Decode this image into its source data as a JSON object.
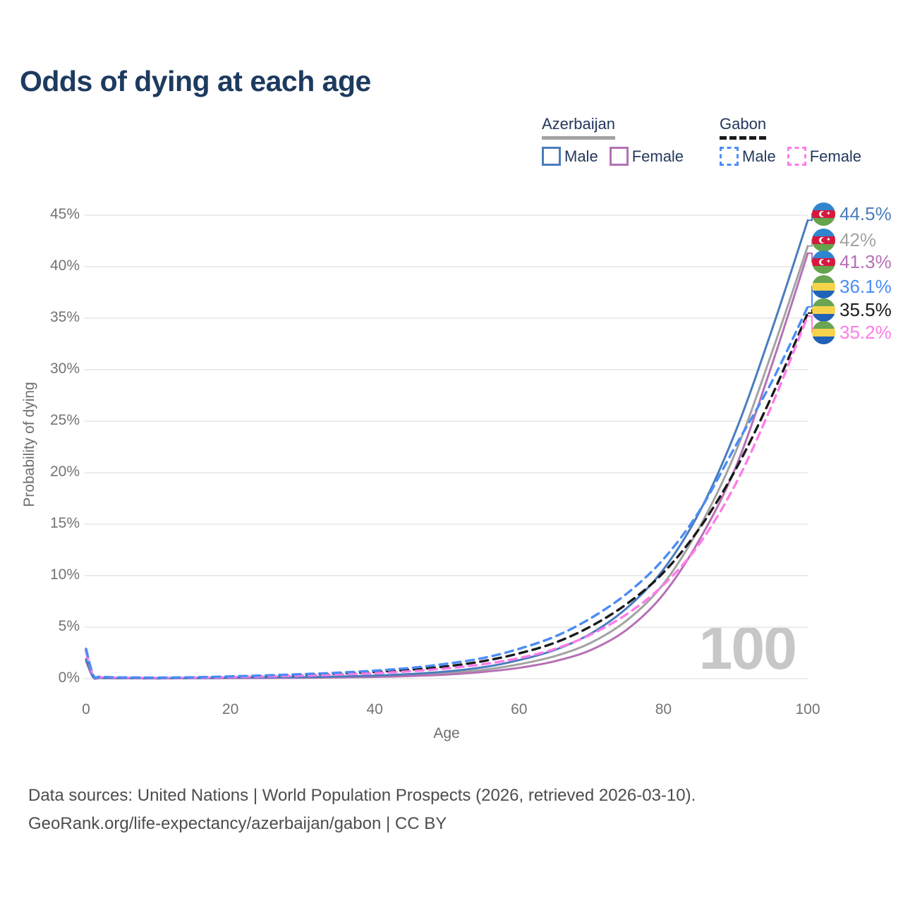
{
  "header": {
    "title": "Odds of dying at each age"
  },
  "legend": {
    "groups": [
      {
        "label": "Azerbaijan",
        "line_style": "solid",
        "underline_color": "#a3a3a3",
        "items": [
          {
            "label": "Male",
            "color": "#4a7dbd"
          },
          {
            "label": "Female",
            "color": "#b571b5"
          }
        ]
      },
      {
        "label": "Gabon",
        "line_style": "dashed",
        "underline_color": "#1a1a1a",
        "items": [
          {
            "label": "Male",
            "color": "#4b8cf5"
          },
          {
            "label": "Female",
            "color": "#ff7ce8"
          }
        ]
      }
    ]
  },
  "chart_data": {
    "type": "line",
    "title": "Odds of dying at each age",
    "xlabel": "Age",
    "ylabel": "Probability of dying",
    "xlim": [
      0,
      100
    ],
    "ylim": [
      0,
      45
    ],
    "xticks": [
      "0",
      "20",
      "40",
      "60",
      "80",
      "100"
    ],
    "yticks": [
      "0%",
      "5%",
      "10%",
      "15%",
      "20%",
      "25%",
      "30%",
      "35%",
      "40%",
      "45%"
    ],
    "grid": true,
    "legend_position": "top-right",
    "watermark": "100",
    "series": [
      {
        "name": "Azerbaijan Male",
        "country": "Azerbaijan",
        "sex": "Male",
        "color": "#4a7dbd",
        "dash": false,
        "end_label": "44.5%",
        "end_value": 44.5,
        "points": [
          [
            0,
            1.9
          ],
          [
            1,
            0.16
          ],
          [
            2,
            0.08
          ],
          [
            5,
            0.05
          ],
          [
            10,
            0.04
          ],
          [
            15,
            0.06
          ],
          [
            20,
            0.1
          ],
          [
            25,
            0.13
          ],
          [
            30,
            0.16
          ],
          [
            35,
            0.21
          ],
          [
            40,
            0.3
          ],
          [
            45,
            0.45
          ],
          [
            50,
            0.7
          ],
          [
            55,
            1.1
          ],
          [
            60,
            1.8
          ],
          [
            65,
            2.8
          ],
          [
            70,
            4.4
          ],
          [
            75,
            6.9
          ],
          [
            80,
            10.6
          ],
          [
            85,
            16.2
          ],
          [
            90,
            24.0
          ],
          [
            95,
            33.8
          ],
          [
            100,
            44.5
          ]
        ]
      },
      {
        "name": "Azerbaijan",
        "country": "Azerbaijan",
        "sex": "Both",
        "color": "#a3a3a3",
        "dash": false,
        "end_label": "42%",
        "end_value": 42,
        "points": [
          [
            0,
            1.8
          ],
          [
            1,
            0.14
          ],
          [
            2,
            0.07
          ],
          [
            5,
            0.04
          ],
          [
            10,
            0.03
          ],
          [
            15,
            0.05
          ],
          [
            20,
            0.08
          ],
          [
            25,
            0.1
          ],
          [
            30,
            0.12
          ],
          [
            35,
            0.16
          ],
          [
            40,
            0.23
          ],
          [
            45,
            0.35
          ],
          [
            50,
            0.55
          ],
          [
            55,
            0.85
          ],
          [
            60,
            1.4
          ],
          [
            65,
            2.2
          ],
          [
            70,
            3.5
          ],
          [
            75,
            5.7
          ],
          [
            80,
            9.2
          ],
          [
            85,
            14.7
          ],
          [
            90,
            22.0
          ],
          [
            95,
            31.6
          ],
          [
            100,
            42.0
          ]
        ]
      },
      {
        "name": "Azerbaijan Female",
        "country": "Azerbaijan",
        "sex": "Female",
        "color": "#b571b5",
        "dash": false,
        "end_label": "41.3%",
        "end_value": 41.3,
        "points": [
          [
            0,
            1.7
          ],
          [
            1,
            0.12
          ],
          [
            2,
            0.06
          ],
          [
            5,
            0.04
          ],
          [
            10,
            0.03
          ],
          [
            15,
            0.04
          ],
          [
            20,
            0.05
          ],
          [
            25,
            0.07
          ],
          [
            30,
            0.09
          ],
          [
            35,
            0.12
          ],
          [
            40,
            0.17
          ],
          [
            45,
            0.26
          ],
          [
            50,
            0.4
          ],
          [
            55,
            0.65
          ],
          [
            60,
            1.05
          ],
          [
            65,
            1.7
          ],
          [
            70,
            2.8
          ],
          [
            75,
            4.8
          ],
          [
            80,
            8.2
          ],
          [
            85,
            13.5
          ],
          [
            90,
            20.5
          ],
          [
            95,
            30.4
          ],
          [
            100,
            41.3
          ]
        ]
      },
      {
        "name": "Gabon Male",
        "country": "Gabon",
        "sex": "Male",
        "color": "#4b8cf5",
        "dash": true,
        "end_label": "36.1%",
        "end_value": 36.1,
        "points": [
          [
            0,
            2.9
          ],
          [
            1,
            0.35
          ],
          [
            2,
            0.18
          ],
          [
            5,
            0.12
          ],
          [
            10,
            0.1
          ],
          [
            15,
            0.14
          ],
          [
            20,
            0.22
          ],
          [
            25,
            0.32
          ],
          [
            30,
            0.44
          ],
          [
            35,
            0.58
          ],
          [
            40,
            0.78
          ],
          [
            45,
            1.05
          ],
          [
            50,
            1.45
          ],
          [
            55,
            2.0
          ],
          [
            60,
            2.9
          ],
          [
            65,
            4.1
          ],
          [
            70,
            5.9
          ],
          [
            75,
            8.3
          ],
          [
            80,
            11.6
          ],
          [
            85,
            16.3
          ],
          [
            90,
            22.6
          ],
          [
            95,
            28.8
          ],
          [
            100,
            36.1
          ]
        ]
      },
      {
        "name": "Gabon",
        "country": "Gabon",
        "sex": "Both",
        "color": "#1a1a1a",
        "dash": true,
        "end_label": "35.5%",
        "end_value": 35.5,
        "points": [
          [
            0,
            2.8
          ],
          [
            1,
            0.32
          ],
          [
            2,
            0.16
          ],
          [
            5,
            0.11
          ],
          [
            10,
            0.09
          ],
          [
            15,
            0.12
          ],
          [
            20,
            0.19
          ],
          [
            25,
            0.27
          ],
          [
            30,
            0.37
          ],
          [
            35,
            0.49
          ],
          [
            40,
            0.65
          ],
          [
            45,
            0.88
          ],
          [
            50,
            1.2
          ],
          [
            55,
            1.7
          ],
          [
            60,
            2.45
          ],
          [
            65,
            3.5
          ],
          [
            70,
            5.1
          ],
          [
            75,
            7.3
          ],
          [
            80,
            10.3
          ],
          [
            85,
            14.6
          ],
          [
            90,
            20.3
          ],
          [
            95,
            27.4
          ],
          [
            100,
            35.5
          ]
        ]
      },
      {
        "name": "Gabon Female",
        "country": "Gabon",
        "sex": "Female",
        "color": "#ff7ce8",
        "dash": true,
        "end_label": "35.2%",
        "end_value": 35.2,
        "points": [
          [
            0,
            2.6
          ],
          [
            1,
            0.3
          ],
          [
            2,
            0.15
          ],
          [
            5,
            0.1
          ],
          [
            10,
            0.08
          ],
          [
            15,
            0.1
          ],
          [
            20,
            0.15
          ],
          [
            25,
            0.22
          ],
          [
            30,
            0.3
          ],
          [
            35,
            0.4
          ],
          [
            40,
            0.53
          ],
          [
            45,
            0.72
          ],
          [
            50,
            1.0
          ],
          [
            55,
            1.4
          ],
          [
            60,
            2.0
          ],
          [
            65,
            2.9
          ],
          [
            70,
            4.3
          ],
          [
            75,
            6.3
          ],
          [
            80,
            9.1
          ],
          [
            85,
            13.1
          ],
          [
            90,
            18.9
          ],
          [
            95,
            26.5
          ],
          [
            100,
            35.2
          ]
        ]
      }
    ]
  },
  "footer": {
    "line1": "Data sources: United Nations | World Population Prospects (2026, retrieved 2026-03-10).",
    "line2": "GeoRank.org/life-expectancy/azerbaijan/gabon | CC BY"
  }
}
